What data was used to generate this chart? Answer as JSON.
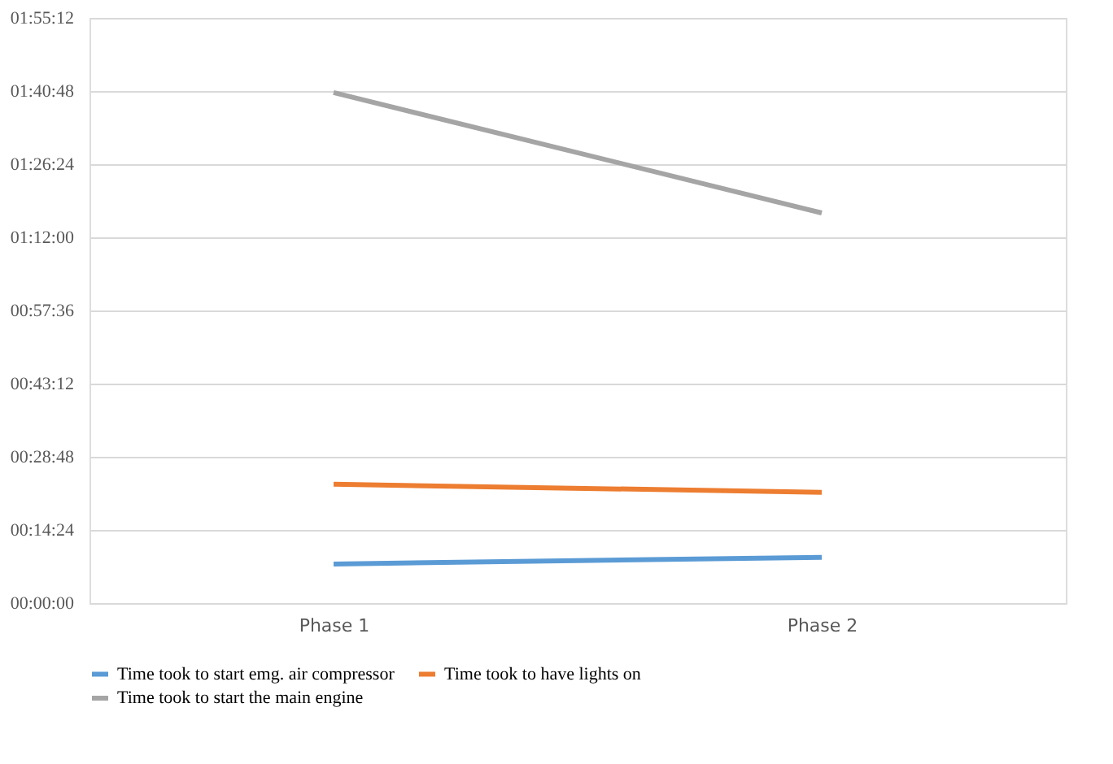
{
  "chart_data": {
    "type": "line",
    "categories": [
      "Phase 1",
      "Phase 2"
    ],
    "series": [
      {
        "name": "Time took to start emg. air compressor",
        "color": "#5b9bd5",
        "values": [
          7.7,
          9.0
        ]
      },
      {
        "name": "Time took to have lights on",
        "color": "#ed7d31",
        "values": [
          23.4,
          21.8
        ]
      },
      {
        "name": "Time took to start the main engine",
        "color": "#a5a5a5",
        "values": [
          100.5,
          76.8
        ]
      }
    ],
    "ylim": [
      0,
      115.2
    ],
    "yticks": [
      {
        "value": 0,
        "label": "00:00:00"
      },
      {
        "value": 14.4,
        "label": "00:14:24"
      },
      {
        "value": 28.8,
        "label": "00:28:48"
      },
      {
        "value": 43.2,
        "label": "00:43:12"
      },
      {
        "value": 57.6,
        "label": "00:57:36"
      },
      {
        "value": 72,
        "label": "01:12:00"
      },
      {
        "value": 86.4,
        "label": "01:26:24"
      },
      {
        "value": 100.8,
        "label": "01:40:48"
      },
      {
        "value": 115.2,
        "label": "01:55:12"
      }
    ],
    "grid": "y",
    "legend": "bottom",
    "marker": "none",
    "line_style": "solid"
  }
}
